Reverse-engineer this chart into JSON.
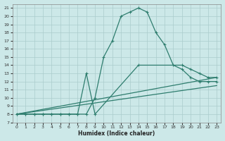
{
  "xlabel": "Humidex (Indice chaleur)",
  "bg_color": "#cce8e8",
  "grid_color": "#aacccc",
  "line_color": "#2e7d6e",
  "xlim": [
    -0.5,
    23.5
  ],
  "ylim": [
    7,
    21.5
  ],
  "xticks": [
    0,
    1,
    2,
    3,
    4,
    5,
    6,
    7,
    8,
    9,
    10,
    11,
    12,
    13,
    14,
    15,
    16,
    17,
    18,
    19,
    20,
    21,
    22,
    23
  ],
  "yticks": [
    7,
    8,
    9,
    10,
    11,
    12,
    13,
    14,
    15,
    16,
    17,
    18,
    19,
    20,
    21
  ],
  "line1_x": [
    0,
    1,
    2,
    3,
    4,
    5,
    6,
    7,
    8,
    9,
    10,
    11,
    12,
    13,
    14,
    15,
    16,
    17,
    18,
    19,
    20,
    21,
    22,
    23
  ],
  "line1_y": [
    8,
    8,
    8,
    8,
    8,
    8,
    8,
    8,
    8,
    10,
    15,
    17,
    20,
    20.5,
    21,
    20.5,
    18,
    16.5,
    14,
    13.5,
    12.5,
    12,
    12,
    12
  ],
  "line2_x": [
    0,
    1,
    2,
    3,
    4,
    5,
    6,
    7,
    8,
    9,
    14,
    19,
    20,
    21,
    22,
    23
  ],
  "line2_y": [
    8,
    8,
    8,
    8,
    8,
    8,
    8,
    8,
    13,
    8,
    14,
    14,
    13.5,
    13,
    12.5,
    12.5
  ],
  "line3_x": [
    0,
    23
  ],
  "line3_y": [
    8,
    12.5
  ],
  "line4_x": [
    0,
    23
  ],
  "line4_y": [
    8,
    11.5
  ]
}
